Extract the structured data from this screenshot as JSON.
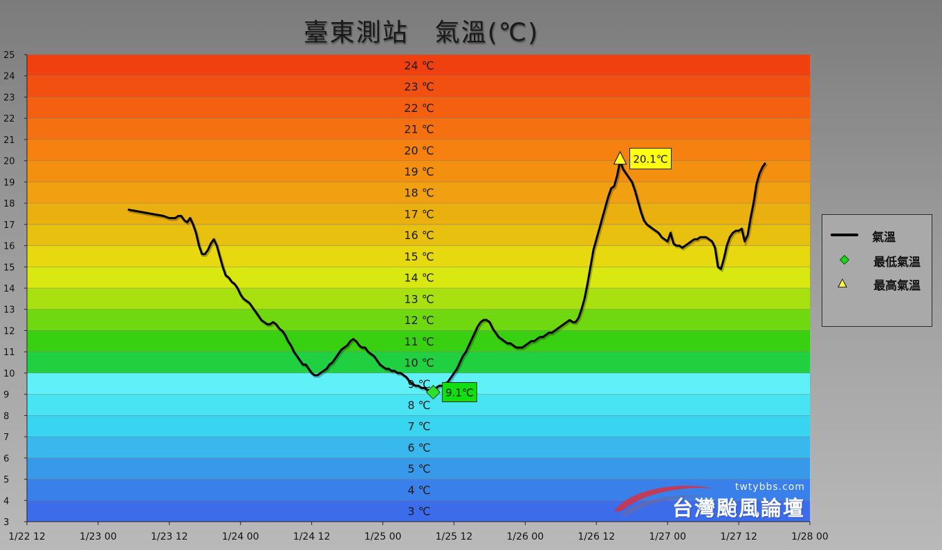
{
  "title": "臺東測站　氣溫(℃)",
  "chart_data": {
    "type": "line",
    "title": "臺東測站　氣溫(℃)",
    "ylim": [
      3,
      25
    ],
    "y_ticks": [
      3,
      4,
      5,
      6,
      7,
      8,
      9,
      10,
      11,
      12,
      13,
      14,
      15,
      16,
      17,
      18,
      19,
      20,
      21,
      22,
      23,
      24,
      25
    ],
    "band_labels": [
      "24 ℃",
      "23 ℃",
      "22 ℃",
      "21 ℃",
      "20 ℃",
      "19 ℃",
      "18 ℃",
      "17 ℃",
      "16 ℃",
      "15 ℃",
      "14 ℃",
      "13 ℃",
      "12 ℃",
      "11 ℃",
      "10 ℃",
      "9 ℃",
      "8 ℃",
      "7 ℃",
      "6 ℃",
      "5 ℃",
      "4 ℃",
      "3 ℃"
    ],
    "band_colors": [
      "#f04010",
      "#f25010",
      "#f46010",
      "#f57010",
      "#f68010",
      "#f49010",
      "#f0a010",
      "#eab010",
      "#e8c010",
      "#e8d810",
      "#d8e810",
      "#a8e010",
      "#70d810",
      "#38d010",
      "#20d040",
      "#60f0f8",
      "#48e4f4",
      "#38d4f0",
      "#38b8ec",
      "#3898ea",
      "#3a80ea",
      "#3c6cea"
    ],
    "x_range_hours": [
      0,
      132
    ],
    "x_ticks": [
      "1/22 12",
      "1/23 00",
      "1/23 12",
      "1/24 00",
      "1/24 12",
      "1/25 00",
      "1/25 12",
      "1/26 00",
      "1/26 12",
      "1/27 00",
      "1/27 12",
      "1/28 00"
    ],
    "series": [
      {
        "name": "氣溫",
        "color": "#000000",
        "points": [
          [
            17,
            17.7
          ],
          [
            19,
            17.6
          ],
          [
            21,
            17.5
          ],
          [
            23,
            17.4
          ],
          [
            24,
            17.3
          ],
          [
            25,
            17.3
          ],
          [
            25.5,
            17.4
          ],
          [
            26,
            17.4
          ],
          [
            26.5,
            17.2
          ],
          [
            27,
            17.1
          ],
          [
            27.5,
            17.3
          ],
          [
            28,
            17.0
          ],
          [
            28.5,
            16.6
          ],
          [
            29,
            16.0
          ],
          [
            29.5,
            15.6
          ],
          [
            30,
            15.6
          ],
          [
            30.5,
            15.8
          ],
          [
            31,
            16.1
          ],
          [
            31.5,
            16.3
          ],
          [
            32,
            16.0
          ],
          [
            32.5,
            15.5
          ],
          [
            33,
            15.0
          ],
          [
            33.5,
            14.6
          ],
          [
            34,
            14.5
          ],
          [
            34.5,
            14.3
          ],
          [
            35,
            14.2
          ],
          [
            35.5,
            14.0
          ],
          [
            36,
            13.7
          ],
          [
            36.5,
            13.5
          ],
          [
            37,
            13.4
          ],
          [
            37.5,
            13.3
          ],
          [
            38,
            13.1
          ],
          [
            38.5,
            12.9
          ],
          [
            39,
            12.7
          ],
          [
            39.5,
            12.5
          ],
          [
            40,
            12.4
          ],
          [
            40.5,
            12.3
          ],
          [
            41,
            12.3
          ],
          [
            41.5,
            12.4
          ],
          [
            42,
            12.3
          ],
          [
            42.5,
            12.1
          ],
          [
            43,
            12.0
          ],
          [
            43.5,
            11.8
          ],
          [
            44,
            11.5
          ],
          [
            44.5,
            11.3
          ],
          [
            45,
            11.0
          ],
          [
            45.5,
            10.8
          ],
          [
            46,
            10.6
          ],
          [
            46.5,
            10.4
          ],
          [
            47,
            10.4
          ],
          [
            47.5,
            10.2
          ],
          [
            48,
            10.0
          ],
          [
            48.5,
            9.9
          ],
          [
            49,
            9.9
          ],
          [
            49.5,
            10.0
          ],
          [
            50,
            10.1
          ],
          [
            50.5,
            10.2
          ],
          [
            51,
            10.4
          ],
          [
            51.5,
            10.5
          ],
          [
            52,
            10.7
          ],
          [
            52.5,
            10.9
          ],
          [
            53,
            11.1
          ],
          [
            53.5,
            11.2
          ],
          [
            54,
            11.3
          ],
          [
            54.5,
            11.5
          ],
          [
            55,
            11.6
          ],
          [
            55.5,
            11.5
          ],
          [
            56,
            11.3
          ],
          [
            56.5,
            11.2
          ],
          [
            57,
            11.2
          ],
          [
            57.5,
            11.0
          ],
          [
            58,
            10.9
          ],
          [
            58.5,
            10.8
          ],
          [
            59,
            10.6
          ],
          [
            59.5,
            10.4
          ],
          [
            60,
            10.3
          ],
          [
            60.5,
            10.2
          ],
          [
            61,
            10.2
          ],
          [
            61.5,
            10.1
          ],
          [
            62,
            10.1
          ],
          [
            62.5,
            10.0
          ],
          [
            63,
            10.0
          ],
          [
            63.5,
            9.9
          ],
          [
            64,
            9.8
          ],
          [
            64.5,
            9.6
          ],
          [
            65,
            9.5
          ],
          [
            65.5,
            9.4
          ],
          [
            66,
            9.4
          ],
          [
            66.5,
            9.3
          ],
          [
            67,
            9.3
          ],
          [
            67.5,
            9.2
          ],
          [
            68,
            9.2
          ],
          [
            68.5,
            9.1
          ],
          [
            69,
            9.3
          ],
          [
            69.5,
            9.4
          ],
          [
            70,
            9.4
          ],
          [
            70.5,
            9.5
          ],
          [
            71,
            9.6
          ],
          [
            71.5,
            9.8
          ],
          [
            72,
            10.0
          ],
          [
            72.5,
            10.2
          ],
          [
            73,
            10.5
          ],
          [
            73.5,
            10.8
          ],
          [
            74,
            11.0
          ],
          [
            74.5,
            11.3
          ],
          [
            75,
            11.6
          ],
          [
            75.5,
            11.9
          ],
          [
            76,
            12.2
          ],
          [
            76.5,
            12.4
          ],
          [
            77,
            12.5
          ],
          [
            77.5,
            12.5
          ],
          [
            78,
            12.4
          ],
          [
            78.5,
            12.1
          ],
          [
            79,
            11.9
          ],
          [
            79.5,
            11.7
          ],
          [
            80,
            11.6
          ],
          [
            80.5,
            11.5
          ],
          [
            81,
            11.4
          ],
          [
            81.5,
            11.4
          ],
          [
            82,
            11.3
          ],
          [
            82.5,
            11.2
          ],
          [
            83,
            11.2
          ],
          [
            83.5,
            11.2
          ],
          [
            84,
            11.3
          ],
          [
            84.5,
            11.4
          ],
          [
            85,
            11.5
          ],
          [
            85.5,
            11.5
          ],
          [
            86,
            11.6
          ],
          [
            86.5,
            11.7
          ],
          [
            87,
            11.7
          ],
          [
            87.5,
            11.8
          ],
          [
            88,
            11.9
          ],
          [
            88.5,
            11.9
          ],
          [
            89,
            12.0
          ],
          [
            89.5,
            12.1
          ],
          [
            90,
            12.2
          ],
          [
            90.5,
            12.3
          ],
          [
            91,
            12.4
          ],
          [
            91.5,
            12.5
          ],
          [
            92,
            12.4
          ],
          [
            92.5,
            12.4
          ],
          [
            93,
            12.6
          ],
          [
            93.5,
            13.0
          ],
          [
            94,
            13.5
          ],
          [
            94.5,
            14.2
          ],
          [
            95,
            15.0
          ],
          [
            95.5,
            15.8
          ],
          [
            96,
            16.3
          ],
          [
            96.5,
            16.8
          ],
          [
            97,
            17.3
          ],
          [
            97.5,
            17.8
          ],
          [
            98,
            18.3
          ],
          [
            98.5,
            18.7
          ],
          [
            99,
            18.8
          ],
          [
            99.5,
            19.3
          ],
          [
            100,
            20.0
          ],
          [
            100.5,
            19.6
          ],
          [
            101,
            19.4
          ],
          [
            101.5,
            19.2
          ],
          [
            102,
            19.0
          ],
          [
            102.5,
            18.6
          ],
          [
            103,
            18.1
          ],
          [
            103.5,
            17.6
          ],
          [
            104,
            17.2
          ],
          [
            104.5,
            17.0
          ],
          [
            105,
            16.9
          ],
          [
            105.5,
            16.8
          ],
          [
            106,
            16.7
          ],
          [
            106.5,
            16.6
          ],
          [
            107,
            16.4
          ],
          [
            107.5,
            16.3
          ],
          [
            108,
            16.2
          ],
          [
            108.5,
            16.6
          ],
          [
            109,
            16.1
          ],
          [
            109.5,
            16.0
          ],
          [
            110,
            16.0
          ],
          [
            110.5,
            15.9
          ],
          [
            111,
            16.0
          ],
          [
            111.5,
            16.1
          ],
          [
            112,
            16.2
          ],
          [
            112.5,
            16.3
          ],
          [
            113,
            16.3
          ],
          [
            113.5,
            16.4
          ],
          [
            114,
            16.4
          ],
          [
            114.5,
            16.4
          ],
          [
            115,
            16.3
          ],
          [
            115.5,
            16.2
          ],
          [
            116,
            15.9
          ],
          [
            116.5,
            15.0
          ],
          [
            117,
            14.9
          ],
          [
            117.5,
            15.4
          ],
          [
            118,
            16.0
          ],
          [
            118.5,
            16.4
          ],
          [
            119,
            16.6
          ],
          [
            119.5,
            16.7
          ],
          [
            120,
            16.7
          ],
          [
            120.5,
            16.8
          ],
          [
            121,
            16.2
          ],
          [
            121.5,
            16.5
          ],
          [
            122,
            17.3
          ],
          [
            122.5,
            18.0
          ],
          [
            123,
            18.9
          ],
          [
            123.5,
            19.4
          ],
          [
            124,
            19.7
          ],
          [
            124.5,
            19.9
          ]
        ]
      }
    ],
    "min_marker": {
      "name": "最低氣溫",
      "x": 68.5,
      "y": 9.1,
      "label": "9.1℃"
    },
    "max_marker": {
      "name": "最高氣溫",
      "x": 100,
      "y": 20.1,
      "label": "20.1℃"
    },
    "legend": {
      "position": "right",
      "entries": [
        "氣溫",
        "最低氣溫",
        "最高氣溫"
      ]
    }
  },
  "watermark": {
    "url": "twtybbs.com",
    "text": "台灣颱風論壇"
  }
}
